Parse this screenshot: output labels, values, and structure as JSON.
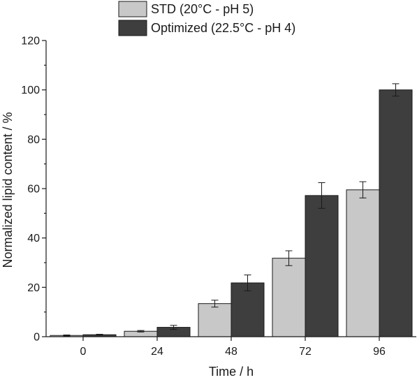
{
  "chart_data": {
    "type": "bar",
    "categories": [
      "0",
      "24",
      "48",
      "72",
      "96"
    ],
    "series": [
      {
        "name": "STD (20°C - pH 5)",
        "values": [
          0.5,
          2.2,
          13.4,
          31.8,
          59.5
        ],
        "errors": [
          0.2,
          0.3,
          1.4,
          3.0,
          3.3
        ],
        "color": "#c8c8c8"
      },
      {
        "name": "Optimized (22.5°C - pH 4)",
        "values": [
          0.8,
          3.8,
          21.8,
          57.2,
          100.0
        ],
        "errors": [
          0.2,
          0.8,
          3.2,
          5.2,
          2.5
        ],
        "color": "#3e3e3e"
      }
    ],
    "xlabel": "Time / h",
    "ylabel": "Normalized lipid content / %",
    "ylim": [
      0,
      120
    ],
    "yticks": [
      0,
      20,
      40,
      60,
      80,
      100,
      120
    ],
    "legend_position": "top-center",
    "grid": false
  }
}
